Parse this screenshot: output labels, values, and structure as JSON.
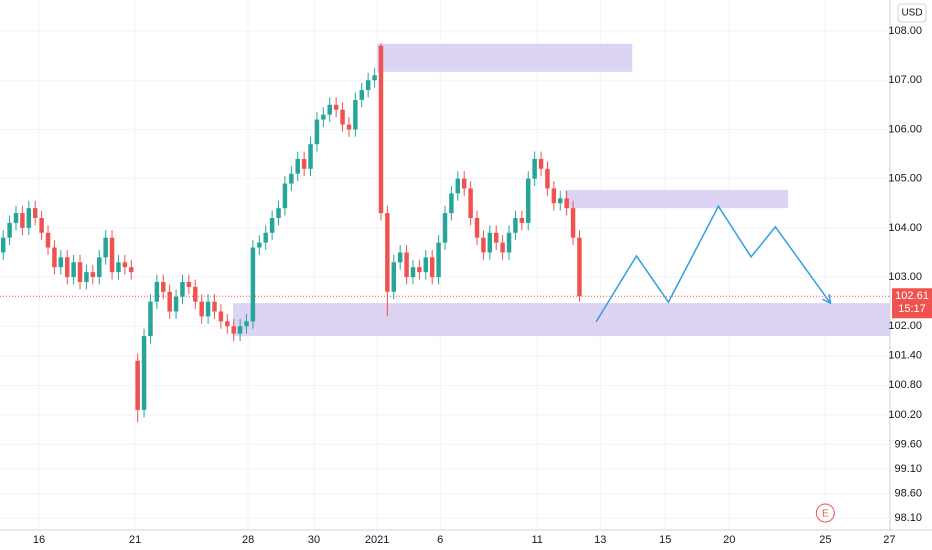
{
  "chart_data": {
    "type": "candlestick",
    "currency": "USD",
    "xlim": [
      0,
      139
    ],
    "ylim": [
      97.86,
      108.63
    ],
    "xticks": [
      {
        "value": 6.1,
        "label": "16"
      },
      {
        "value": 21.1,
        "label": "21"
      },
      {
        "value": 38.75,
        "label": "28"
      },
      {
        "value": 49.05,
        "label": "30"
      },
      {
        "value": 58.9,
        "label": "2021"
      },
      {
        "value": 68.75,
        "label": "6"
      },
      {
        "value": 83.9,
        "label": "11"
      },
      {
        "value": 93.75,
        "label": "13"
      },
      {
        "value": 103.9,
        "label": "15"
      },
      {
        "value": 113.9,
        "label": "20"
      },
      {
        "value": 128.9,
        "label": "25"
      },
      {
        "value": 138.9,
        "label": "27"
      }
    ],
    "yticks": [
      {
        "value": 108,
        "label": "108.00"
      },
      {
        "value": 107,
        "label": "107.00"
      },
      {
        "value": 106,
        "label": "106.00"
      },
      {
        "value": 105,
        "label": "105.00"
      },
      {
        "value": 104,
        "label": "104.00"
      },
      {
        "value": 103,
        "label": "103.00"
      },
      {
        "value": 102,
        "label": "102.00"
      },
      {
        "value": 101.4,
        "label": "101.40"
      },
      {
        "value": 100.8,
        "label": "100.80"
      },
      {
        "value": 100.2,
        "label": "100.20"
      },
      {
        "value": 99.6,
        "label": "99.60"
      },
      {
        "value": 99.1,
        "label": "99.10"
      },
      {
        "value": 98.6,
        "label": "98.60"
      },
      {
        "value": 98.1,
        "label": "98.10"
      }
    ],
    "grid": true,
    "up_color": "#26a69a",
    "down_color": "#ef5350",
    "open": [
      103.5,
      103.8,
      104.1,
      104.3,
      104.0,
      104.4,
      104.2,
      103.9,
      103.6,
      103.2,
      103.4,
      103.0,
      103.3,
      102.9,
      103.1,
      103.0,
      103.4,
      103.8,
      103.1,
      103.3,
      103.2,
      101.3,
      100.3,
      101.8,
      102.5,
      102.9,
      102.7,
      102.3,
      102.6,
      102.9,
      102.8,
      102.5,
      102.2,
      102.5,
      102.3,
      102.1,
      102.0,
      101.85,
      102.0,
      102.1,
      103.6,
      103.7,
      103.9,
      104.2,
      104.4,
      104.9,
      105.1,
      105.4,
      105.2,
      105.7,
      106.2,
      106.3,
      106.5,
      106.4,
      106.1,
      106.0,
      106.6,
      106.8,
      107.0,
      107.7,
      104.3,
      102.7,
      103.3,
      103.5,
      103.0,
      103.2,
      103.1,
      103.4,
      103.0,
      103.7,
      104.3,
      104.7,
      105.0,
      104.8,
      104.2,
      103.8,
      103.5,
      103.9,
      103.7,
      103.5,
      103.9,
      104.2,
      104.1,
      105.0,
      105.4,
      105.2,
      104.8,
      104.5,
      104.6,
      104.4,
      103.8
    ],
    "high": [
      103.95,
      104.25,
      104.45,
      104.45,
      104.55,
      104.55,
      104.35,
      104.05,
      103.75,
      103.55,
      103.55,
      103.45,
      103.45,
      103.25,
      103.25,
      103.55,
      103.95,
      103.95,
      103.45,
      103.45,
      103.35,
      101.45,
      101.95,
      102.65,
      103.05,
      103.05,
      102.85,
      102.75,
      103.05,
      103.05,
      102.95,
      102.65,
      102.65,
      102.65,
      102.45,
      102.25,
      102.15,
      102.15,
      102.25,
      103.75,
      103.85,
      104.05,
      104.35,
      104.55,
      105.05,
      105.25,
      105.55,
      105.55,
      105.85,
      106.35,
      106.45,
      106.65,
      106.65,
      106.55,
      106.25,
      106.75,
      106.95,
      107.15,
      107.25,
      107.75,
      104.45,
      103.45,
      103.65,
      103.65,
      103.35,
      103.35,
      103.55,
      103.55,
      103.85,
      104.45,
      104.85,
      105.15,
      105.15,
      104.95,
      104.35,
      103.95,
      104.05,
      104.05,
      103.85,
      104.05,
      104.35,
      104.35,
      105.15,
      105.55,
      105.55,
      105.35,
      104.95,
      104.75,
      104.75,
      104.55,
      103.95
    ],
    "low": [
      103.35,
      103.65,
      103.95,
      103.85,
      103.85,
      104.05,
      103.75,
      103.45,
      103.05,
      103.05,
      102.85,
      102.85,
      102.75,
      102.75,
      102.85,
      102.85,
      103.25,
      102.95,
      102.95,
      103.05,
      102.95,
      100.05,
      100.15,
      101.65,
      102.35,
      102.55,
      102.15,
      102.15,
      102.45,
      102.65,
      102.35,
      102.05,
      102.05,
      102.15,
      101.95,
      101.85,
      101.7,
      101.7,
      101.85,
      101.95,
      103.45,
      103.55,
      103.75,
      104.05,
      104.25,
      104.75,
      104.95,
      105.05,
      105.05,
      105.55,
      106.05,
      106.15,
      106.25,
      105.95,
      105.85,
      105.85,
      106.45,
      106.65,
      106.85,
      104.15,
      102.2,
      102.55,
      103.15,
      102.85,
      102.85,
      102.95,
      102.95,
      102.85,
      102.85,
      103.55,
      104.15,
      104.55,
      104.65,
      104.05,
      103.65,
      103.35,
      103.35,
      103.55,
      103.35,
      103.35,
      103.75,
      103.95,
      103.95,
      104.85,
      105.05,
      104.65,
      104.35,
      104.35,
      104.25,
      103.65,
      102.5
    ],
    "close": [
      103.8,
      104.1,
      104.3,
      104.0,
      104.4,
      104.2,
      103.9,
      103.6,
      103.2,
      103.4,
      103.0,
      103.3,
      102.9,
      103.1,
      103.0,
      103.4,
      103.8,
      103.1,
      103.3,
      103.2,
      103.1,
      100.3,
      101.8,
      102.5,
      102.9,
      102.7,
      102.3,
      102.6,
      102.9,
      102.8,
      102.5,
      102.2,
      102.5,
      102.3,
      102.1,
      102.0,
      101.85,
      102.0,
      102.1,
      103.6,
      103.7,
      103.9,
      104.2,
      104.4,
      104.9,
      105.1,
      105.4,
      105.2,
      105.7,
      106.2,
      106.3,
      106.5,
      106.4,
      106.1,
      106.0,
      106.6,
      106.8,
      107.0,
      107.1,
      104.3,
      102.7,
      103.3,
      103.5,
      103.0,
      103.2,
      103.1,
      103.4,
      103.0,
      103.7,
      104.3,
      104.7,
      105.0,
      104.8,
      104.2,
      103.8,
      103.5,
      103.9,
      103.7,
      103.5,
      103.9,
      104.2,
      104.1,
      105.0,
      105.4,
      105.2,
      104.8,
      104.5,
      104.6,
      104.4,
      103.8,
      102.61
    ],
    "zones": [
      {
        "x0": 58.9,
        "x1": 98.75,
        "y0": 107.17,
        "y1": 107.74,
        "color": "#ddd3f2"
      },
      {
        "x0": 88.3,
        "x1": 123.1,
        "y0": 104.4,
        "y1": 104.77,
        "color": "#ddd3f2"
      },
      {
        "x0": 36.4,
        "x1": 139,
        "y0": 101.8,
        "y1": 102.47,
        "color": "#ddd3f2"
      }
    ],
    "projection": {
      "color": "#2f9fe0",
      "x": [
        93.1,
        99.4,
        104.4,
        112.2,
        117.3,
        121.1,
        129.7
      ],
      "y": [
        102.09,
        103.43,
        102.49,
        104.44,
        103.41,
        104.02,
        102.47
      ]
    },
    "last_price": {
      "value": 102.61,
      "label": "102.61"
    },
    "countdown": "15:17",
    "event": {
      "x": 128.9,
      "label": "E"
    }
  }
}
